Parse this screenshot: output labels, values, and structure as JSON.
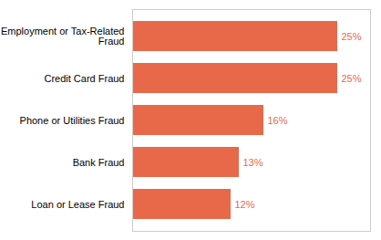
{
  "chart_data": {
    "type": "bar",
    "orientation": "horizontal",
    "categories": [
      "Loan or Lease Fraud",
      "Bank Fraud",
      "Phone or Utilities Fraud",
      "Credit Card Fraud",
      "Employment or Tax-Related\nFraud"
    ],
    "values": [
      12,
      13,
      16,
      25,
      25
    ],
    "value_labels": [
      "12%",
      "13%",
      "16%",
      "25%",
      "25%"
    ],
    "data_labels": true,
    "color": "#E8694A",
    "xlim": [
      0,
      29
    ],
    "grid": false,
    "tick_labels": "y"
  }
}
